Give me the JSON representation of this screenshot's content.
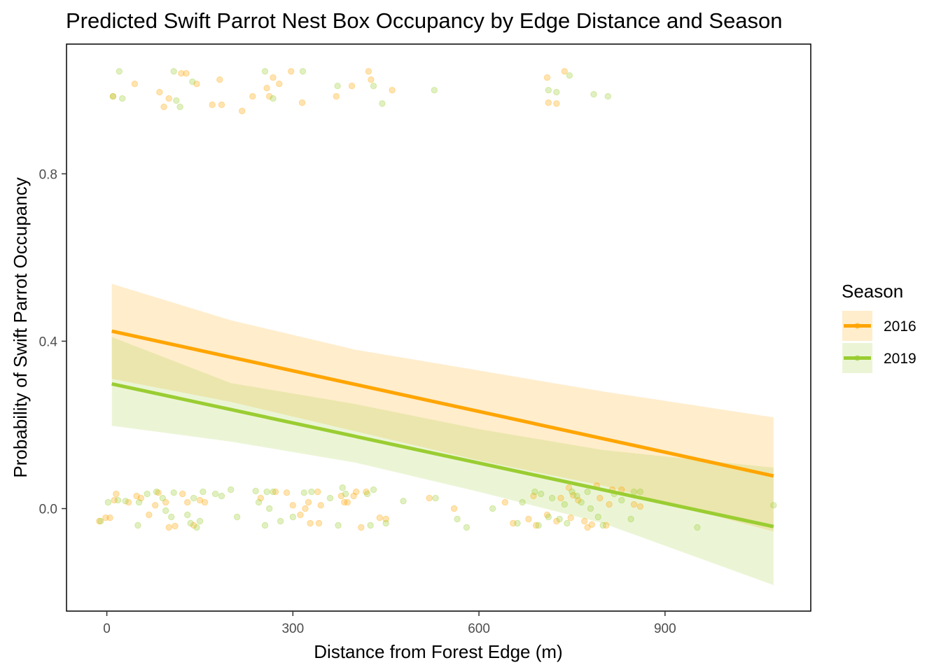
{
  "chart_data": {
    "type": "line",
    "title": "Predicted Swift Parrot Nest Box Occupancy by Edge Distance and Season",
    "xlabel": "Distance from Forest Edge (m)",
    "ylabel": "Probability of Swift Parrot Occupancy",
    "xlim": [
      -65,
      1135
    ],
    "ylim": [
      -0.245,
      1.11
    ],
    "x_ticks": [
      0,
      300,
      600,
      900
    ],
    "x_tick_labels": [
      "0",
      "300",
      "600",
      "900"
    ],
    "y_ticks": [
      0.0,
      0.4,
      0.8
    ],
    "y_tick_labels": [
      "0.0",
      "0.4",
      "0.8"
    ],
    "grid": false,
    "legend": {
      "title": "Season",
      "position": "right"
    },
    "series": [
      {
        "name": "2016",
        "color": "#FFA500",
        "line": {
          "x": [
            8,
            1075
          ],
          "y": [
            0.424,
            0.078
          ]
        },
        "ribbon": {
          "x": [
            8,
            200,
            400,
            600,
            800,
            1075
          ],
          "lower": [
            0.31,
            0.255,
            0.185,
            0.115,
            0.055,
            -0.055
          ],
          "upper": [
            0.537,
            0.45,
            0.38,
            0.33,
            0.28,
            0.218
          ]
        },
        "points": [
          {
            "x": 10,
            "y": 0.985
          },
          {
            "x": 45,
            "y": 1.015
          },
          {
            "x": 85,
            "y": 0.995
          },
          {
            "x": 92,
            "y": 0.96
          },
          {
            "x": 100,
            "y": 0.98
          },
          {
            "x": 120,
            "y": 1.04
          },
          {
            "x": 128,
            "y": 1.04
          },
          {
            "x": 145,
            "y": 1.015
          },
          {
            "x": 170,
            "y": 0.965
          },
          {
            "x": 182,
            "y": 1.025
          },
          {
            "x": 185,
            "y": 0.965
          },
          {
            "x": 218,
            "y": 0.95
          },
          {
            "x": 235,
            "y": 0.985
          },
          {
            "x": 258,
            "y": 1.005
          },
          {
            "x": 262,
            "y": 0.985
          },
          {
            "x": 268,
            "y": 1.03
          },
          {
            "x": 278,
            "y": 1.015
          },
          {
            "x": 297,
            "y": 1.045
          },
          {
            "x": 315,
            "y": 0.97
          },
          {
            "x": 370,
            "y": 0.985
          },
          {
            "x": 395,
            "y": 1.01
          },
          {
            "x": 422,
            "y": 1.045
          },
          {
            "x": 426,
            "y": 1.025
          },
          {
            "x": 460,
            "y": 1.0
          },
          {
            "x": 710,
            "y": 1.03
          },
          {
            "x": 712,
            "y": 0.97
          },
          {
            "x": 725,
            "y": 0.968
          },
          {
            "x": 738,
            "y": 1.045
          },
          {
            "x": -12,
            "y": -0.03
          },
          {
            "x": -2,
            "y": -0.022
          },
          {
            "x": 5,
            "y": -0.022
          },
          {
            "x": 12,
            "y": 0.02
          },
          {
            "x": 15,
            "y": 0.035
          },
          {
            "x": 35,
            "y": 0.015
          },
          {
            "x": 48,
            "y": 0.03
          },
          {
            "x": 55,
            "y": 0.025
          },
          {
            "x": 68,
            "y": -0.015
          },
          {
            "x": 78,
            "y": 0.008
          },
          {
            "x": 83,
            "y": 0.038
          },
          {
            "x": 95,
            "y": 0.015
          },
          {
            "x": 100,
            "y": -0.045
          },
          {
            "x": 110,
            "y": -0.042
          },
          {
            "x": 122,
            "y": 0.035
          },
          {
            "x": 130,
            "y": 0.015
          },
          {
            "x": 140,
            "y": -0.04
          },
          {
            "x": 150,
            "y": 0.02
          },
          {
            "x": 158,
            "y": 0.015
          },
          {
            "x": 248,
            "y": 0.025
          },
          {
            "x": 272,
            "y": 0.04
          },
          {
            "x": 290,
            "y": 0.038
          },
          {
            "x": 300,
            "y": 0.008
          },
          {
            "x": 312,
            "y": -0.015
          },
          {
            "x": 320,
            "y": 0.0
          },
          {
            "x": 325,
            "y": 0.015
          },
          {
            "x": 328,
            "y": -0.035
          },
          {
            "x": 340,
            "y": 0.04
          },
          {
            "x": 342,
            "y": -0.035
          },
          {
            "x": 345,
            "y": 0.008
          },
          {
            "x": 378,
            "y": 0.03
          },
          {
            "x": 383,
            "y": 0.015
          },
          {
            "x": 388,
            "y": 0.015
          },
          {
            "x": 398,
            "y": 0.03
          },
          {
            "x": 402,
            "y": 0.04
          },
          {
            "x": 410,
            "y": -0.045
          },
          {
            "x": 418,
            "y": 0.04
          },
          {
            "x": 440,
            "y": -0.022
          },
          {
            "x": 450,
            "y": -0.025
          },
          {
            "x": 520,
            "y": 0.025
          },
          {
            "x": 560,
            "y": 0.0
          },
          {
            "x": 642,
            "y": 0.015
          },
          {
            "x": 655,
            "y": -0.035
          },
          {
            "x": 680,
            "y": -0.025
          },
          {
            "x": 688,
            "y": 0.03
          },
          {
            "x": 692,
            "y": -0.04
          },
          {
            "x": 710,
            "y": -0.015
          },
          {
            "x": 725,
            "y": -0.03
          },
          {
            "x": 732,
            "y": 0.025
          },
          {
            "x": 745,
            "y": 0.05
          },
          {
            "x": 748,
            "y": -0.022
          },
          {
            "x": 752,
            "y": 0.032
          },
          {
            "x": 760,
            "y": 0.02
          },
          {
            "x": 770,
            "y": -0.03
          },
          {
            "x": 775,
            "y": -0.045
          },
          {
            "x": 782,
            "y": -0.038
          },
          {
            "x": 790,
            "y": 0.055
          },
          {
            "x": 795,
            "y": 0.025
          },
          {
            "x": 805,
            "y": -0.04
          },
          {
            "x": 810,
            "y": 0.01
          },
          {
            "x": 815,
            "y": 0.045
          },
          {
            "x": 830,
            "y": 0.045
          },
          {
            "x": 850,
            "y": 0.01
          },
          {
            "x": 860,
            "y": 0.005
          }
        ]
      },
      {
        "name": "2019",
        "color": "#9ACD32",
        "line": {
          "x": [
            8,
            1075
          ],
          "y": [
            0.298,
            -0.043
          ]
        },
        "ribbon": {
          "x": [
            8,
            200,
            400,
            600,
            800,
            1075
          ],
          "lower": [
            0.198,
            0.16,
            0.11,
            0.04,
            -0.035,
            -0.183
          ],
          "upper": [
            0.41,
            0.3,
            0.25,
            0.19,
            0.14,
            0.098
          ]
        },
        "points": [
          {
            "x": 10,
            "y": 0.985
          },
          {
            "x": 20,
            "y": 1.045
          },
          {
            "x": 25,
            "y": 0.98
          },
          {
            "x": 108,
            "y": 1.045
          },
          {
            "x": 112,
            "y": 0.975
          },
          {
            "x": 118,
            "y": 0.96
          },
          {
            "x": 138,
            "y": 1.02
          },
          {
            "x": 255,
            "y": 1.045
          },
          {
            "x": 268,
            "y": 0.98
          },
          {
            "x": 316,
            "y": 1.045
          },
          {
            "x": 372,
            "y": 1.01
          },
          {
            "x": 430,
            "y": 1.01
          },
          {
            "x": 444,
            "y": 0.968
          },
          {
            "x": 528,
            "y": 1.0
          },
          {
            "x": 712,
            "y": 1.0
          },
          {
            "x": 725,
            "y": 0.995
          },
          {
            "x": 746,
            "y": 1.035
          },
          {
            "x": 785,
            "y": 0.99
          },
          {
            "x": 808,
            "y": 0.985
          },
          {
            "x": -10,
            "y": -0.03
          },
          {
            "x": 2,
            "y": 0.015
          },
          {
            "x": 18,
            "y": 0.02
          },
          {
            "x": 30,
            "y": 0.018
          },
          {
            "x": 50,
            "y": -0.04
          },
          {
            "x": 52,
            "y": 0.015
          },
          {
            "x": 65,
            "y": 0.035
          },
          {
            "x": 80,
            "y": 0.04
          },
          {
            "x": 90,
            "y": 0.025
          },
          {
            "x": 95,
            "y": -0.005
          },
          {
            "x": 104,
            "y": -0.02
          },
          {
            "x": 108,
            "y": 0.038
          },
          {
            "x": 130,
            "y": -0.015
          },
          {
            "x": 135,
            "y": -0.035
          },
          {
            "x": 140,
            "y": 0.025
          },
          {
            "x": 145,
            "y": -0.045
          },
          {
            "x": 150,
            "y": -0.03
          },
          {
            "x": 155,
            "y": 0.04
          },
          {
            "x": 175,
            "y": 0.035
          },
          {
            "x": 185,
            "y": 0.03
          },
          {
            "x": 200,
            "y": 0.045
          },
          {
            "x": 210,
            "y": -0.02
          },
          {
            "x": 240,
            "y": 0.042
          },
          {
            "x": 245,
            "y": 0.015
          },
          {
            "x": 255,
            "y": -0.04
          },
          {
            "x": 258,
            "y": 0.04
          },
          {
            "x": 262,
            "y": 0.0
          },
          {
            "x": 268,
            "y": 0.04
          },
          {
            "x": 280,
            "y": -0.03
          },
          {
            "x": 300,
            "y": -0.02
          },
          {
            "x": 318,
            "y": 0.038
          },
          {
            "x": 330,
            "y": 0.04
          },
          {
            "x": 360,
            "y": 0.025
          },
          {
            "x": 373,
            "y": -0.04
          },
          {
            "x": 380,
            "y": 0.05
          },
          {
            "x": 385,
            "y": 0.035
          },
          {
            "x": 420,
            "y": 0.035
          },
          {
            "x": 430,
            "y": 0.045
          },
          {
            "x": 425,
            "y": -0.04
          },
          {
            "x": 450,
            "y": -0.035
          },
          {
            "x": 478,
            "y": 0.018
          },
          {
            "x": 530,
            "y": 0.025
          },
          {
            "x": 565,
            "y": -0.025
          },
          {
            "x": 580,
            "y": -0.045
          },
          {
            "x": 622,
            "y": 0.0
          },
          {
            "x": 662,
            "y": -0.035
          },
          {
            "x": 670,
            "y": 0.015
          },
          {
            "x": 690,
            "y": 0.04
          },
          {
            "x": 696,
            "y": -0.04
          },
          {
            "x": 700,
            "y": 0.035
          },
          {
            "x": 712,
            "y": -0.02
          },
          {
            "x": 718,
            "y": 0.025
          },
          {
            "x": 730,
            "y": -0.025
          },
          {
            "x": 738,
            "y": 0.01
          },
          {
            "x": 742,
            "y": -0.035
          },
          {
            "x": 750,
            "y": 0.04
          },
          {
            "x": 758,
            "y": 0.03
          },
          {
            "x": 765,
            "y": 0.015
          },
          {
            "x": 775,
            "y": 0.04
          },
          {
            "x": 780,
            "y": 0.0
          },
          {
            "x": 792,
            "y": -0.02
          },
          {
            "x": 800,
            "y": -0.04
          },
          {
            "x": 818,
            "y": 0.035
          },
          {
            "x": 830,
            "y": 0.02
          },
          {
            "x": 845,
            "y": -0.025
          },
          {
            "x": 850,
            "y": 0.04
          },
          {
            "x": 860,
            "y": 0.04
          },
          {
            "x": 952,
            "y": -0.045
          },
          {
            "x": 1075,
            "y": 0.008
          }
        ]
      }
    ]
  }
}
